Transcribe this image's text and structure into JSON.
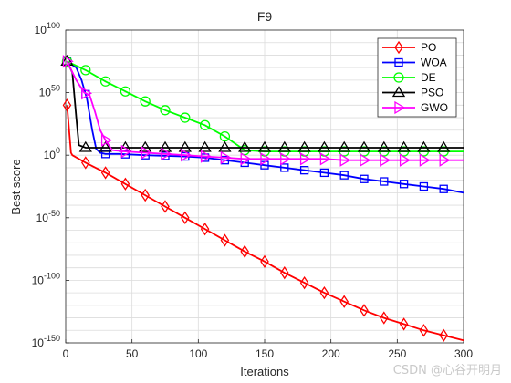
{
  "chart_data": {
    "type": "line",
    "title": "F9",
    "xlabel": "Iterations",
    "ylabel": "Best score",
    "xlim": [
      0,
      300
    ],
    "ylim_log10": [
      -150,
      100
    ],
    "yscale": "log",
    "grid": true,
    "legend_position": "top-right",
    "x_ticks": [
      0,
      50,
      100,
      150,
      200,
      250,
      300
    ],
    "y_ticks": [
      {
        "base": "10",
        "exp": "100",
        "value_log10": 100
      },
      {
        "base": "10",
        "exp": "50",
        "value_log10": 50
      },
      {
        "base": "10",
        "exp": "0",
        "value_log10": 0
      },
      {
        "base": "10",
        "exp": "-50",
        "value_log10": -50
      },
      {
        "base": "10",
        "exp": "-100",
        "value_log10": -100
      },
      {
        "base": "10",
        "exp": "-150",
        "value_log10": -150
      }
    ],
    "series": [
      {
        "name": "PO",
        "color": "#ff0000",
        "marker": "diamond",
        "x": [
          1,
          4,
          5,
          15,
          30,
          45,
          60,
          75,
          90,
          105,
          120,
          135,
          150,
          165,
          180,
          195,
          210,
          225,
          240,
          255,
          270,
          285,
          300
        ],
        "log10_y": [
          40,
          2,
          0,
          -6,
          -14,
          -23,
          -32,
          -41,
          -50,
          -59,
          -68,
          -77,
          -85,
          -94,
          -102,
          -110,
          -117,
          -124,
          -130,
          -135,
          -140,
          -144,
          -148
        ]
      },
      {
        "name": "WOA",
        "color": "#0000ff",
        "marker": "square",
        "x": [
          1,
          8,
          12,
          16,
          20,
          23,
          26,
          30,
          40,
          60,
          90,
          105,
          120,
          135,
          150,
          165,
          180,
          195,
          210,
          225,
          240,
          255,
          270,
          285,
          300
        ],
        "log10_y": [
          75,
          70,
          60,
          45,
          20,
          5,
          2,
          1,
          1,
          0,
          -1,
          -2,
          -4,
          -6,
          -8,
          -10,
          -12,
          -14,
          -16,
          -19,
          -21,
          -23,
          -25,
          -27,
          -30
        ]
      },
      {
        "name": "DE",
        "color": "#00ff00",
        "marker": "circle",
        "x": [
          1,
          15,
          30,
          45,
          60,
          75,
          90,
          105,
          120,
          135,
          150,
          165,
          180,
          195,
          210,
          225,
          240,
          255,
          270,
          285,
          300
        ],
        "log10_y": [
          75,
          68,
          59,
          51,
          43,
          36,
          30,
          24,
          15,
          4,
          3,
          3,
          3,
          3,
          3,
          3,
          3,
          3,
          3,
          3,
          3
        ]
      },
      {
        "name": "PSO",
        "color": "#000000",
        "marker": "triangle-up",
        "x": [
          1,
          5,
          8,
          10,
          15,
          30,
          45,
          60,
          75,
          90,
          105,
          120,
          135,
          150,
          165,
          180,
          195,
          210,
          225,
          240,
          255,
          270,
          285,
          300
        ],
        "log10_y": [
          75,
          66,
          30,
          8,
          6,
          6,
          6,
          6,
          6,
          6,
          6,
          6,
          6,
          6,
          6,
          6,
          6,
          6,
          6,
          6,
          6,
          6,
          6,
          6
        ]
      },
      {
        "name": "GWO",
        "color": "#ff00ff",
        "marker": "triangle-right",
        "x": [
          1,
          8,
          14,
          18,
          22,
          26,
          30,
          35,
          45,
          60,
          75,
          90,
          105,
          120,
          135,
          150,
          165,
          180,
          195,
          210,
          225,
          240,
          255,
          270,
          285,
          300
        ],
        "log10_y": [
          75,
          60,
          50,
          48,
          35,
          20,
          12,
          4,
          3,
          2,
          1,
          0,
          -1,
          -2,
          -3,
          -3,
          -3,
          -3,
          -3,
          -4,
          -4,
          -4,
          -4,
          -4,
          -4,
          -4
        ]
      }
    ],
    "marker_x": [
      0,
      15,
      30,
      45,
      60,
      75,
      90,
      105,
      120,
      135,
      150,
      165,
      180,
      195,
      210,
      225,
      240,
      255,
      270,
      285
    ]
  },
  "watermark": "CSDN @心谷开明月"
}
